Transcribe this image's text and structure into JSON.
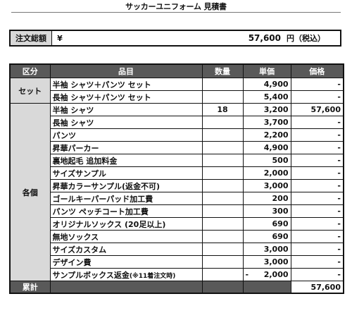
{
  "document": {
    "title": "サッカーユニフォーム 見積書"
  },
  "total": {
    "label": "注文総額",
    "currency": "¥",
    "amount": "57,600",
    "unit": "円（税込）"
  },
  "table": {
    "headers": [
      "区分",
      "品目",
      "数量",
      "単価",
      "価格"
    ],
    "groups": [
      {
        "category": "セット",
        "rows": [
          {
            "item": "半袖 シャツ＋パンツ セット",
            "qty": "",
            "unit_price": "4,900",
            "price": "-"
          },
          {
            "item": "長袖 シャツ＋パンツ セット",
            "qty": "",
            "unit_price": "5,400",
            "price": "-"
          }
        ]
      },
      {
        "category": "各個",
        "rows": [
          {
            "item": "半袖 シャツ",
            "qty": "18",
            "unit_price": "3,200",
            "price": "57,600"
          },
          {
            "item": "長袖 シャツ",
            "qty": "",
            "unit_price": "3,700",
            "price": "-"
          },
          {
            "item": "パンツ",
            "qty": "",
            "unit_price": "2,200",
            "price": "-"
          },
          {
            "item": "昇華パーカー",
            "qty": "",
            "unit_price": "4,900",
            "price": "-"
          },
          {
            "item": "裏地起毛 追加料金",
            "qty": "",
            "unit_price": "500",
            "price": "-"
          },
          {
            "item": "サイズサンプル",
            "qty": "",
            "unit_price": "2,000",
            "price": "-"
          },
          {
            "item": "昇華カラーサンプル(返金不可)",
            "qty": "",
            "unit_price": "3,000",
            "price": "-"
          },
          {
            "item": "ゴールキーパーパッド加工費",
            "qty": "",
            "unit_price": "200",
            "price": "-"
          },
          {
            "item": "パンツ ペッチコート加工費",
            "qty": "",
            "unit_price": "300",
            "price": "-"
          },
          {
            "item": "オリジナルソックス (20足以上)",
            "qty": "",
            "unit_price": "690",
            "price": "-"
          },
          {
            "item": "無地ソックス",
            "qty": "",
            "unit_price": "690",
            "price": "-"
          },
          {
            "item": "サイズカスタム",
            "qty": "",
            "unit_price": "3,000",
            "price": "-"
          },
          {
            "item": "デザイン費",
            "qty": "",
            "unit_price": "3,000",
            "price": "-"
          },
          {
            "item": "サンプルボックス返金",
            "item_note": "(※11着注文時)",
            "qty": "",
            "unit_price_sign": "-",
            "unit_price": "2,000",
            "price": "-"
          }
        ]
      }
    ],
    "sum": {
      "label": "累計",
      "price": "57,600"
    }
  }
}
